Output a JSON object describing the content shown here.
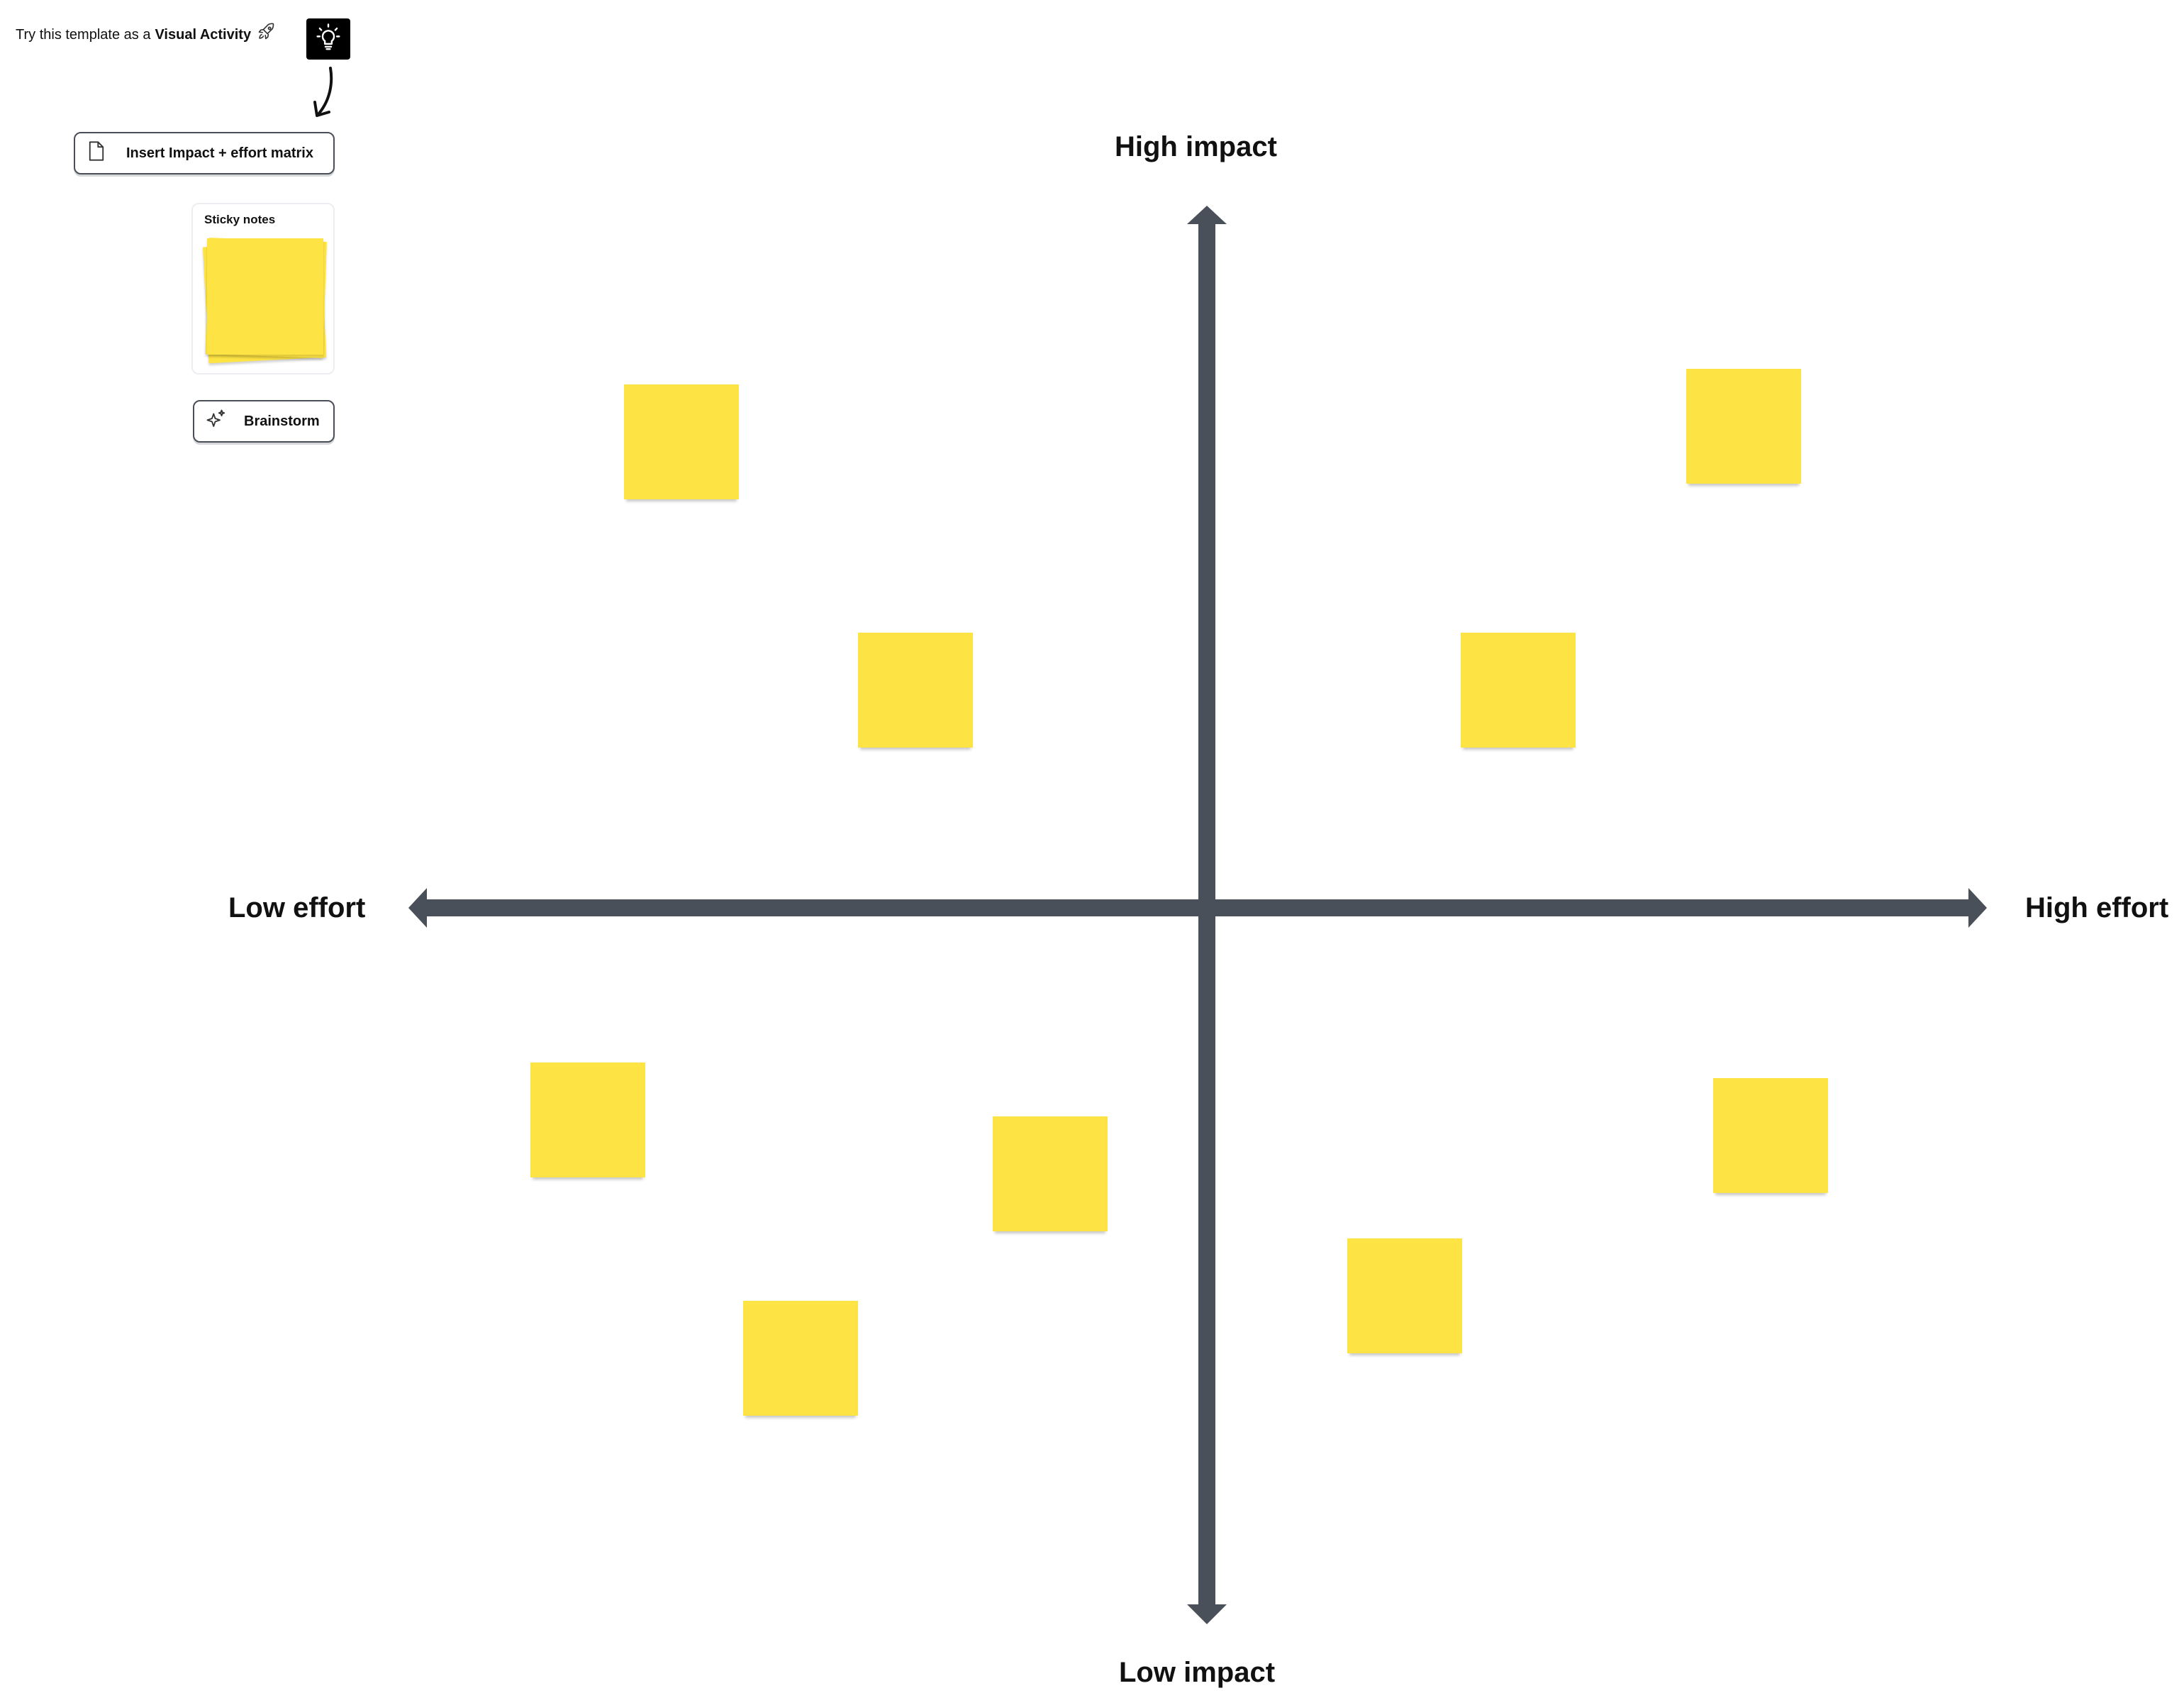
{
  "hint": {
    "prefix": "Try this template as a",
    "emphasis": "Visual Activity",
    "rocket_icon": "rocket-icon",
    "bulb_icon": "lightbulb-icon"
  },
  "toolbar": {
    "insert_label": "Insert Impact + effort matrix",
    "insert_icon": "document-icon",
    "sticky_notes_label": "Sticky notes",
    "brainstorm_label": "Brainstorm",
    "brainstorm_icon": "sparkle-icon"
  },
  "matrix": {
    "top_label": "High impact",
    "bottom_label": "Low impact",
    "left_label": "Low effort",
    "right_label": "High effort",
    "axis_color": "#4a5059",
    "note_color": "#fee344"
  }
}
